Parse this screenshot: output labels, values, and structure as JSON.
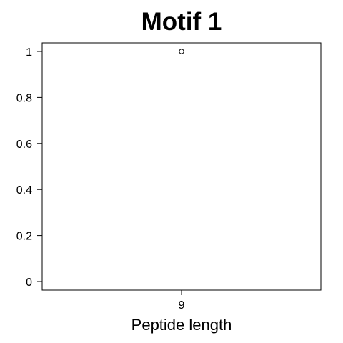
{
  "chart_data": {
    "type": "scatter",
    "title": "Motif 1",
    "xlabel": "Peptide length",
    "ylabel": "",
    "categories": [
      "9"
    ],
    "values": [
      1
    ],
    "ylim": [
      0,
      1
    ],
    "yticks": [
      "0",
      "0.2",
      "0.4",
      "0.6",
      "0.8",
      "1"
    ],
    "grid": false,
    "legend": "none",
    "colors": {
      "axis": "#000000",
      "point": "#000000",
      "background": "#ffffff"
    }
  }
}
